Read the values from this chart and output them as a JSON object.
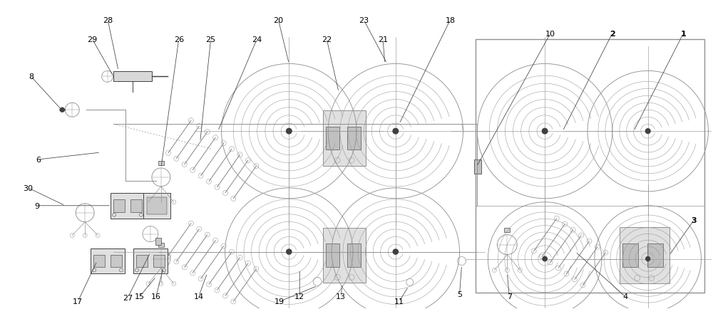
{
  "bg_color": "#ffffff",
  "line_color": "#909090",
  "dark_color": "#404040",
  "label_color": "#000000",
  "fig_width": 10.0,
  "fig_height": 4.35,
  "roll_color": "#a0a0a0",
  "box_fill": "#e0e0e0",
  "box_dark": "#606060"
}
